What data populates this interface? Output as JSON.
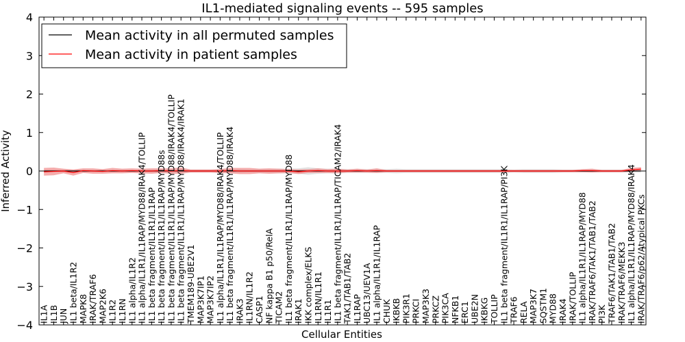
{
  "chart_data": {
    "type": "line",
    "title": "IL1-mediated signaling events -- 595 samples",
    "xlabel": "Cellular Entities",
    "ylabel": "Inferred Activity",
    "ylim": [
      -4,
      4
    ],
    "yticks": [
      "4",
      "3",
      "2",
      "1",
      "0",
      "−1",
      "−2",
      "−3",
      "−4"
    ],
    "legend": {
      "placement": "top-left",
      "entries": [
        {
          "label": "Mean activity in all permuted samples",
          "color": "#000000"
        },
        {
          "label": "Mean activity in patient samples",
          "color": "#ff0000"
        }
      ]
    },
    "categories": [
      "IL1A",
      "IL1B",
      "JUN",
      "IL1 beta/IL1R2",
      "MAPK8",
      "IRAK/TRAF6",
      "MAP2K6",
      "IL1R2",
      "IL1RN",
      "IL1 alpha/IL1R2",
      "IL1 alpha/IL1R1/IL1RAP/MYD88/IRAK4/TOLLIP",
      "IL1 beta fragment/IL1R1/IL1RAP",
      "IL1 beta fragment/IL1R1/IL1RAP/MYD88s",
      "IL1 beta fragment/IL1R1/IL1RAP/MYD88/IRAK4/TOLLIP",
      "IL1 beta fragment/IL1R1/IL1RAP/MYD88/IRAK4/IRAK1",
      "TMEM189-UBE2V1",
      "MAP3K7IP1",
      "MAP3K7IP2",
      "IL1 alpha/IL1R1/IL1RAP/MYD88/IRAK4/TOLLIP",
      "IL1 beta fragment/IL1R1/IL1RAP/MYD88/IRAK4",
      "IRAK3",
      "IL1RN/IL1R2",
      "CASP1",
      "NF kappa B1 p50/RelA",
      "TICAM2",
      "IL1 beta fragment/IL1R1/IL1RAP/MYD88",
      "IRAK1",
      "IKK complex/ELKS",
      "IL1RN/IL1R1",
      "IL1R1",
      "IL1 beta fragment/IL1R1/IL1RAP/TICAM2/IRAK4",
      "TAK1/TAB1/TAB2",
      "IL1RAP",
      "UBC13/UEV1A",
      "IL1 alpha/IL1R1/IL1RAP",
      "CHUK",
      "IKBKB",
      "PIK3R1",
      "PRKCI",
      "MAP3K3",
      "PRKCZ",
      "PIK3CA",
      "NFKB1",
      "ERC1",
      "UBE2N",
      "IKBKG",
      "TOLLIP",
      "IL1 beta fragment/IL1R1/IL1RAP/PI3K",
      "TRAF6",
      "RELA",
      "MAP3K7",
      "SQSTM1",
      "MYD88",
      "IRAK4",
      "IRAK/TOLLIP",
      "IL1 alpha/IL1R1/IL1RAP/MYD88",
      "IRAK/TRAF6/TAK1/TAB1/TAB2",
      "PI3K",
      "TRAF6/TAK1/TAB1/TAB2",
      "IRAK/TRAF6/MEKK3",
      "IL1 alpha/IL1R1/IL1RAP/MYD88/IRAK4",
      "IRAK/TRAF6/p62/Atypical PKCs"
    ],
    "series": [
      {
        "name": "Mean activity in all permuted samples",
        "values": [
          0.0,
          0.0,
          0.0,
          0.0,
          0.0,
          0.0,
          0.0,
          0.0,
          0.0,
          0.0,
          0.0,
          0.0,
          0.0,
          0.0,
          0.0,
          0.0,
          0.0,
          0.0,
          0.0,
          0.0,
          0.0,
          0.0,
          0.0,
          0.0,
          0.0,
          0.0,
          0.0,
          0.0,
          0.0,
          0.0,
          0.0,
          0.0,
          0.0,
          0.0,
          0.0,
          0.0,
          0.0,
          0.0,
          0.0,
          0.0,
          0.0,
          0.0,
          0.0,
          0.0,
          0.0,
          0.0,
          0.0,
          0.0,
          0.0,
          0.0,
          0.0,
          0.0,
          0.0,
          0.0,
          0.0,
          0.0,
          0.0,
          0.0,
          0.0,
          0.0,
          0.0,
          0.0
        ],
        "band": [
          0.03,
          0.03,
          0.04,
          0.03,
          0.04,
          0.03,
          0.04,
          0.03,
          0.04,
          0.03,
          0.04,
          0.04,
          0.05,
          0.04,
          0.05,
          0.04,
          0.04,
          0.04,
          0.05,
          0.05,
          0.05,
          0.04,
          0.05,
          0.05,
          0.06,
          0.06,
          0.07,
          0.1,
          0.07,
          0.06,
          0.06,
          0.05,
          0.05,
          0.05,
          0.05,
          0.05,
          0.06,
          0.05,
          0.05,
          0.05,
          0.05,
          0.05,
          0.05,
          0.05,
          0.05,
          0.05,
          0.05,
          0.05,
          0.04,
          0.05,
          0.05,
          0.05,
          0.05,
          0.04,
          0.04,
          0.04,
          0.04,
          0.04,
          0.04,
          0.04,
          0.04,
          0.04
        ]
      },
      {
        "name": "Mean activity in patient samples",
        "values": [
          -0.02,
          -0.01,
          0.0,
          -0.04,
          0.01,
          0.0,
          -0.01,
          0.01,
          0.0,
          0.01,
          0.0,
          0.0,
          0.01,
          0.0,
          0.01,
          0.0,
          0.0,
          0.0,
          0.0,
          0.01,
          0.0,
          0.0,
          0.0,
          0.0,
          0.0,
          0.0,
          -0.02,
          0.0,
          0.01,
          0.0,
          0.0,
          0.0,
          0.01,
          0.0,
          0.01,
          0.0,
          0.0,
          0.0,
          0.0,
          0.0,
          0.0,
          0.0,
          0.0,
          0.0,
          0.0,
          0.0,
          0.0,
          0.0,
          0.0,
          0.0,
          0.0,
          0.0,
          0.0,
          0.0,
          0.0,
          0.01,
          0.01,
          0.0,
          0.0,
          0.0,
          0.03,
          0.05
        ],
        "band": [
          0.1,
          0.1,
          0.06,
          0.08,
          0.06,
          0.07,
          0.06,
          0.07,
          0.06,
          0.06,
          0.06,
          0.07,
          0.06,
          0.07,
          0.08,
          0.04,
          0.04,
          0.04,
          0.05,
          0.07,
          0.08,
          0.08,
          0.06,
          0.07,
          0.06,
          0.05,
          0.06,
          0.05,
          0.06,
          0.05,
          0.06,
          0.04,
          0.05,
          0.04,
          0.06,
          0.03,
          0.03,
          0.03,
          0.03,
          0.03,
          0.03,
          0.03,
          0.03,
          0.03,
          0.03,
          0.03,
          0.03,
          0.03,
          0.03,
          0.03,
          0.03,
          0.03,
          0.03,
          0.03,
          0.03,
          0.04,
          0.05,
          0.03,
          0.03,
          0.03,
          0.05,
          0.05
        ]
      }
    ]
  }
}
